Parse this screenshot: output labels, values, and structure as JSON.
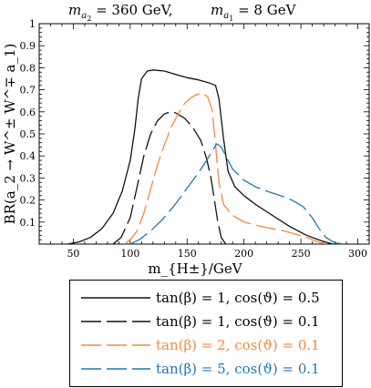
{
  "header": {
    "left": "m_{a_2} = 360 GeV,",
    "right": "m_{a_1} = 8 GeV"
  },
  "colors": {
    "axis": "#000000",
    "series": [
      "#111111",
      "#111111",
      "#f4883c",
      "#1f77b4"
    ]
  },
  "chart_data": {
    "type": "line",
    "xlabel": "m_{H±}/GeV",
    "ylabel": "BR(a_2 → W^± W^∓ a_1)",
    "xlim": [
      20,
      310
    ],
    "ylim": [
      0,
      1
    ],
    "xticks": [
      50,
      100,
      150,
      200,
      250,
      300
    ],
    "yticks": [
      0.1,
      0.2,
      0.3,
      0.4,
      0.5,
      0.6,
      0.7,
      0.8,
      0.9,
      1
    ],
    "grid": false,
    "legend_position": "below plot",
    "series": [
      {
        "name": "tan(β) = 1, cos(ϑ) = 0.5",
        "style": "solid",
        "points": [
          [
            45,
            0.0
          ],
          [
            55,
            0.01
          ],
          [
            65,
            0.03
          ],
          [
            75,
            0.07
          ],
          [
            85,
            0.14
          ],
          [
            93,
            0.24
          ],
          [
            100,
            0.38
          ],
          [
            104,
            0.52
          ],
          [
            107,
            0.66
          ],
          [
            110,
            0.75
          ],
          [
            115,
            0.785
          ],
          [
            120,
            0.79
          ],
          [
            130,
            0.785
          ],
          [
            140,
            0.77
          ],
          [
            150,
            0.755
          ],
          [
            160,
            0.745
          ],
          [
            170,
            0.73
          ],
          [
            175,
            0.72
          ],
          [
            178,
            0.66
          ],
          [
            182,
            0.48
          ],
          [
            186,
            0.33
          ],
          [
            192,
            0.26
          ],
          [
            200,
            0.22
          ],
          [
            210,
            0.18
          ],
          [
            225,
            0.13
          ],
          [
            240,
            0.08
          ],
          [
            255,
            0.04
          ],
          [
            268,
            0.015
          ],
          [
            278,
            0.0
          ]
        ]
      },
      {
        "name": "tan(β) = 1, cos(ϑ) = 0.1",
        "style": "dashed",
        "points": [
          [
            85,
            0.0
          ],
          [
            92,
            0.03
          ],
          [
            100,
            0.12
          ],
          [
            106,
            0.26
          ],
          [
            112,
            0.4
          ],
          [
            118,
            0.5
          ],
          [
            124,
            0.56
          ],
          [
            130,
            0.59
          ],
          [
            135,
            0.6
          ],
          [
            140,
            0.595
          ],
          [
            148,
            0.57
          ],
          [
            155,
            0.53
          ],
          [
            162,
            0.47
          ],
          [
            167,
            0.39
          ],
          [
            171,
            0.3
          ],
          [
            174,
            0.2
          ],
          [
            177,
            0.1
          ],
          [
            180,
            0.03
          ],
          [
            184,
            0.0
          ]
        ]
      },
      {
        "name": "tan(β) = 2, cos(ϑ) = 0.1",
        "style": "dashed",
        "points": [
          [
            95,
            0.0
          ],
          [
            100,
            0.02
          ],
          [
            106,
            0.06
          ],
          [
            112,
            0.14
          ],
          [
            118,
            0.25
          ],
          [
            124,
            0.36
          ],
          [
            130,
            0.45
          ],
          [
            136,
            0.53
          ],
          [
            142,
            0.59
          ],
          [
            148,
            0.64
          ],
          [
            155,
            0.67
          ],
          [
            162,
            0.685
          ],
          [
            168,
            0.67
          ],
          [
            172,
            0.61
          ],
          [
            175,
            0.45
          ],
          [
            178,
            0.28
          ],
          [
            182,
            0.18
          ],
          [
            190,
            0.13
          ],
          [
            200,
            0.1
          ],
          [
            215,
            0.08
          ],
          [
            235,
            0.06
          ],
          [
            255,
            0.03
          ],
          [
            265,
            0.01
          ],
          [
            272,
            0.0
          ]
        ]
      },
      {
        "name": "tan(β) = 5, cos(ϑ) = 0.1",
        "style": "dashed",
        "points": [
          [
            100,
            0.0
          ],
          [
            108,
            0.02
          ],
          [
            118,
            0.06
          ],
          [
            128,
            0.11
          ],
          [
            138,
            0.17
          ],
          [
            148,
            0.24
          ],
          [
            158,
            0.31
          ],
          [
            166,
            0.37
          ],
          [
            172,
            0.42
          ],
          [
            176,
            0.455
          ],
          [
            180,
            0.44
          ],
          [
            185,
            0.39
          ],
          [
            190,
            0.34
          ],
          [
            200,
            0.29
          ],
          [
            210,
            0.26
          ],
          [
            220,
            0.24
          ],
          [
            232,
            0.22
          ],
          [
            242,
            0.2
          ],
          [
            252,
            0.17
          ],
          [
            260,
            0.12
          ],
          [
            266,
            0.07
          ],
          [
            272,
            0.03
          ],
          [
            280,
            0.005
          ],
          [
            290,
            0.0
          ]
        ]
      }
    ]
  }
}
